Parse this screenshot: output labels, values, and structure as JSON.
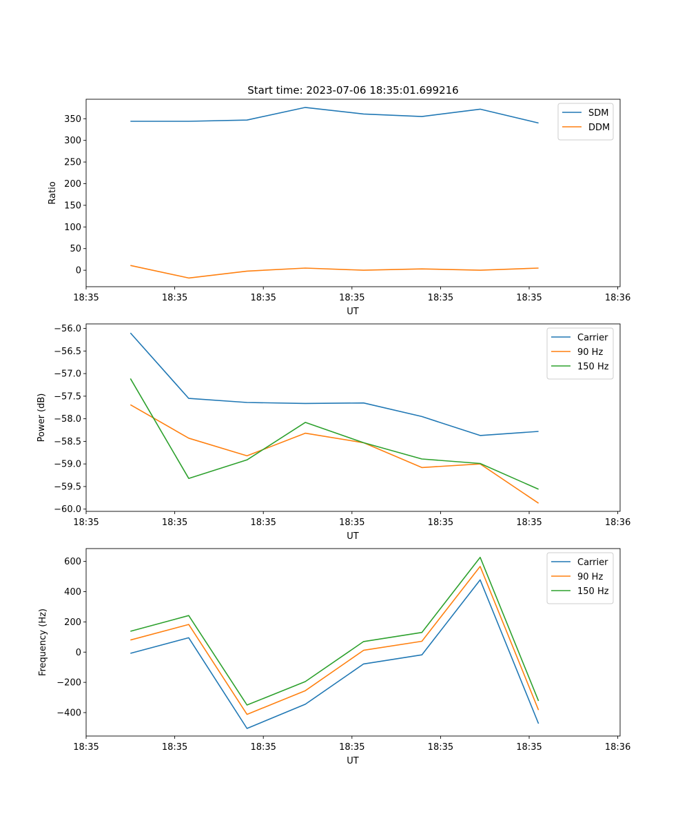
{
  "figure": {
    "title": "Start time: 2023-07-06 18:35:01.699216"
  },
  "chart_data": [
    {
      "type": "line",
      "title": "Start time: 2023-07-06 18:35:01.699216",
      "xlabel": "UT",
      "ylabel": "Ratio",
      "xlim": [
        -0.76,
        8.4
      ],
      "ylim": [
        -38,
        395
      ],
      "x_ticks": [
        {
          "value": -0.76,
          "label": "18:35"
        },
        {
          "value": 0.76,
          "label": "18:35"
        },
        {
          "value": 2.28,
          "label": "18:35"
        },
        {
          "value": 3.8,
          "label": "18:35"
        },
        {
          "value": 5.32,
          "label": "18:35"
        },
        {
          "value": 6.84,
          "label": "18:35"
        },
        {
          "value": 8.36,
          "label": "18:36"
        }
      ],
      "y_ticks": [
        0,
        50,
        100,
        150,
        200,
        250,
        300,
        350
      ],
      "legend": "top-right",
      "x": [
        0,
        1,
        2,
        3,
        4,
        5,
        6,
        7
      ],
      "series": [
        {
          "name": "SDM",
          "color": "#1f77b4",
          "values": [
            344,
            344,
            347,
            376,
            361,
            355,
            372,
            340
          ]
        },
        {
          "name": "DDM",
          "color": "#ff7f0e",
          "values": [
            11,
            -18,
            -2,
            5,
            0,
            3,
            0,
            5
          ]
        }
      ]
    },
    {
      "type": "line",
      "title": "",
      "xlabel": "UT",
      "ylabel": "Power (dB)",
      "xlim": [
        -0.76,
        8.4
      ],
      "ylim": [
        -60.05,
        -55.9
      ],
      "x_ticks": [
        {
          "value": -0.76,
          "label": "18:35"
        },
        {
          "value": 0.76,
          "label": "18:35"
        },
        {
          "value": 2.28,
          "label": "18:35"
        },
        {
          "value": 3.8,
          "label": "18:35"
        },
        {
          "value": 5.32,
          "label": "18:35"
        },
        {
          "value": 6.84,
          "label": "18:35"
        },
        {
          "value": 8.36,
          "label": "18:36"
        }
      ],
      "y_ticks": [
        -60.0,
        -59.5,
        -59.0,
        -58.5,
        -58.0,
        -57.5,
        -57.0,
        -56.5,
        -56.0
      ],
      "legend": "top-right",
      "x": [
        0,
        1,
        2,
        3,
        4,
        5,
        6,
        7
      ],
      "series": [
        {
          "name": "Carrier",
          "color": "#1f77b4",
          "values": [
            -56.1,
            -57.55,
            -57.64,
            -57.66,
            -57.65,
            -57.95,
            -58.37,
            -58.28
          ]
        },
        {
          "name": "90 Hz",
          "color": "#ff7f0e",
          "values": [
            -57.69,
            -58.43,
            -58.82,
            -58.32,
            -58.53,
            -59.08,
            -59.0,
            -59.87
          ]
        },
        {
          "name": "150 Hz",
          "color": "#2ca02c",
          "values": [
            -57.11,
            -59.32,
            -58.91,
            -58.08,
            -58.53,
            -58.89,
            -58.99,
            -59.56
          ]
        }
      ]
    },
    {
      "type": "line",
      "title": "",
      "xlabel": "UT",
      "ylabel": "Frequency (Hz)",
      "xlim": [
        -0.76,
        8.4
      ],
      "ylim": [
        -555,
        685
      ],
      "x_ticks": [
        {
          "value": -0.76,
          "label": "18:35"
        },
        {
          "value": 0.76,
          "label": "18:35"
        },
        {
          "value": 2.28,
          "label": "18:35"
        },
        {
          "value": 3.8,
          "label": "18:35"
        },
        {
          "value": 5.32,
          "label": "18:35"
        },
        {
          "value": 6.84,
          "label": "18:35"
        },
        {
          "value": 8.36,
          "label": "18:36"
        }
      ],
      "y_ticks": [
        -400,
        -200,
        0,
        200,
        400,
        600
      ],
      "legend": "top-right",
      "x": [
        0,
        1,
        2,
        3,
        4,
        5,
        6,
        7
      ],
      "series": [
        {
          "name": "Carrier",
          "color": "#1f77b4",
          "values": [
            -8,
            95,
            -505,
            -345,
            -78,
            -18,
            478,
            -473
          ]
        },
        {
          "name": "90 Hz",
          "color": "#ff7f0e",
          "values": [
            80,
            183,
            -412,
            -255,
            12,
            72,
            567,
            -383
          ]
        },
        {
          "name": "150 Hz",
          "color": "#2ca02c",
          "values": [
            138,
            242,
            -350,
            -195,
            70,
            130,
            627,
            -323
          ]
        }
      ]
    }
  ]
}
